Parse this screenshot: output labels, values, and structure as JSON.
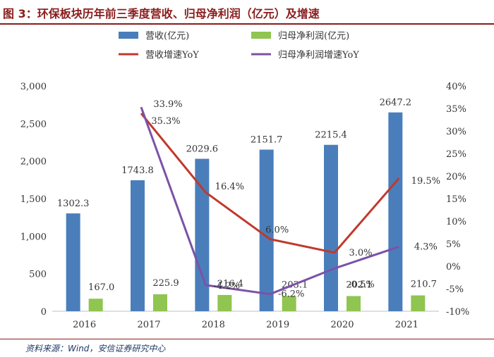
{
  "header": {
    "title": "图 3：环保板块历年前三季度营收、归母净利润（亿元）及增速"
  },
  "footer": {
    "source": "资料来源：Wind，安信证券研究中心"
  },
  "colors": {
    "revenue": "#4a7ebb",
    "profit": "#8fc550",
    "revenue_yoy": "#c0392b",
    "profit_yoy": "#7b52a6",
    "title": "#8a1c1c",
    "source": "#1f3864"
  },
  "chart_data": {
    "type": "bar",
    "title": "",
    "xlabel": "",
    "ylabel": "",
    "categories": [
      "2016",
      "2017",
      "2018",
      "2019",
      "2020",
      "2021"
    ],
    "ylim": [
      0,
      3000
    ],
    "y2lim": [
      -10,
      40
    ],
    "y_ticks": [
      "0",
      "500",
      "1,000",
      "1,500",
      "2,000",
      "2,500",
      "3,000"
    ],
    "y2_ticks": [
      "-10%",
      "-5%",
      "0%",
      "5%",
      "10%",
      "15%",
      "20%",
      "25%",
      "30%",
      "35%",
      "40%"
    ],
    "legend_position": "top",
    "series": [
      {
        "name": "营收(亿元)",
        "type": "bar",
        "axis": "left",
        "color": "#4a7ebb",
        "values": [
          1302.3,
          1743.8,
          2029.6,
          2151.7,
          2215.4,
          2647.2
        ],
        "labels": [
          "1302.3",
          "1743.8",
          "2029.6",
          "2151.7",
          "2215.4",
          "2647.2"
        ]
      },
      {
        "name": "归母净利润(亿元)",
        "type": "bar",
        "axis": "left",
        "color": "#8fc550",
        "values": [
          167.0,
          225.9,
          216.4,
          203.1,
          202.1,
          210.7
        ],
        "labels": [
          "167.0",
          "225.9",
          "216.4",
          "203.1",
          "202.1",
          "210.7"
        ]
      },
      {
        "name": "营收增速YoY",
        "type": "line",
        "axis": "right",
        "color": "#c0392b",
        "x": [
          "2017",
          "2018",
          "2019",
          "2020",
          "2021"
        ],
        "values": [
          33.9,
          16.4,
          6.0,
          3.0,
          19.5
        ],
        "labels": [
          "33.9%",
          "16.4%",
          "6.0%",
          "3.0%",
          "19.5%"
        ]
      },
      {
        "name": "归母净利润增速YoY",
        "type": "line",
        "axis": "right",
        "color": "#7b52a6",
        "x": [
          "2017",
          "2018",
          "2019",
          "2020",
          "2021"
        ],
        "values": [
          35.3,
          -4.2,
          -6.2,
          -0.5,
          4.3
        ],
        "labels": [
          "35.3%",
          "-4.2%",
          "-6.2%",
          "-0.5%",
          "4.3%"
        ]
      }
    ]
  }
}
